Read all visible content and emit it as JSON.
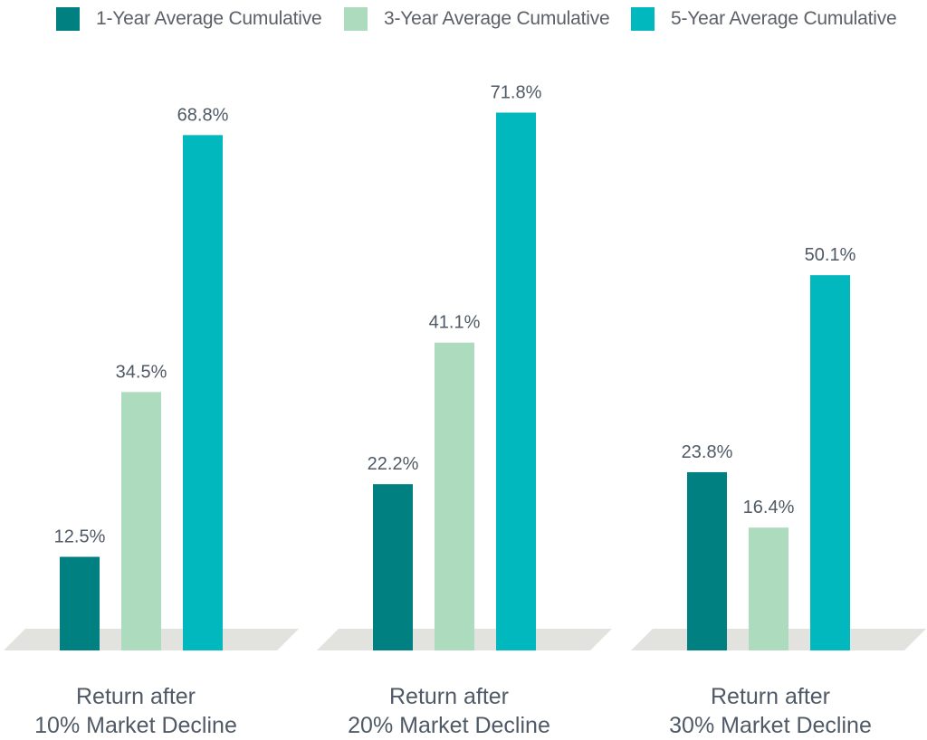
{
  "chart_data": {
    "type": "bar",
    "categories": [
      [
        "Return after",
        "10% Market Decline"
      ],
      [
        "Return after",
        "20% Market Decline"
      ],
      [
        "Return after",
        "30% Market Decline"
      ]
    ],
    "series": [
      {
        "name": "1-Year Average Cumulative",
        "color": "#008080",
        "values": [
          12.5,
          22.2,
          23.8
        ],
        "labels": [
          "12.5%",
          "22.2%",
          "23.8%"
        ]
      },
      {
        "name": "3-Year Average Cumulative",
        "color": "#addbbd",
        "values": [
          34.5,
          41.1,
          16.4
        ],
        "labels": [
          "34.5%",
          "41.1%",
          "16.4%"
        ]
      },
      {
        "name": "5-Year Average Cumulative",
        "color": "#00b8be",
        "values": [
          68.8,
          71.8,
          50.1
        ],
        "labels": [
          "68.8%",
          "71.8%",
          "50.1%"
        ]
      }
    ],
    "ylim": [
      0,
      80
    ],
    "grid": false,
    "legend": "top",
    "floor_color": "#e2e2de",
    "label_color": "#4f5a66"
  }
}
